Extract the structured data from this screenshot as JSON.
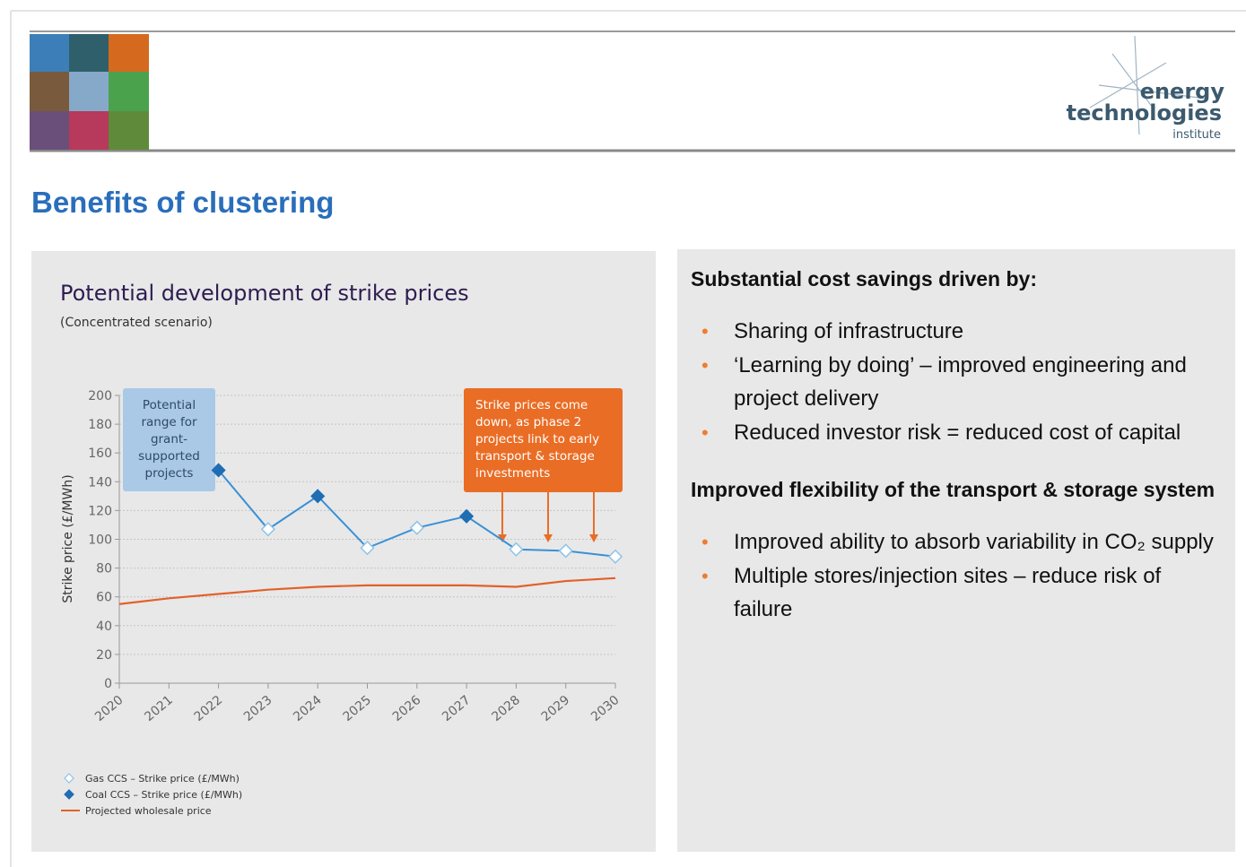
{
  "logo": {
    "line1": "energy",
    "line2": "technologies",
    "line3": "institute"
  },
  "slide_title": "Benefits of clustering",
  "chart_data": {
    "type": "line",
    "title": "Potential development of strike prices",
    "subtitle": "(Concentrated scenario)",
    "y_label": "Strike price (£/MWh)",
    "x": [
      2020,
      2021,
      2022,
      2023,
      2024,
      2025,
      2026,
      2027,
      2028,
      2029,
      2030
    ],
    "xlim": [
      2020,
      2030
    ],
    "xticks": [
      2020,
      2021,
      2022,
      2023,
      2024,
      2025,
      2026,
      2027,
      2028,
      2029,
      2030
    ],
    "ylim": [
      0,
      200
    ],
    "yticks": [
      0,
      20,
      40,
      60,
      80,
      100,
      120,
      140,
      160,
      180,
      200
    ],
    "grid": true,
    "series": [
      {
        "name": "Gas CCS – Strike price (£/MWh)",
        "color": "#8ec3e6",
        "marker": "hollow-diamond",
        "values": [
          null,
          null,
          null,
          107,
          null,
          94,
          108,
          null,
          93,
          92,
          88
        ]
      },
      {
        "name": "Coal CCS – Strike price (£/MWh)",
        "color": "#1f6db3",
        "marker": "diamond",
        "values": [
          null,
          null,
          148,
          null,
          130,
          null,
          null,
          116,
          null,
          null,
          null
        ]
      },
      {
        "name": "Projected wholesale price",
        "color": "#e2612a",
        "marker": "line",
        "values": [
          55,
          59,
          62,
          65,
          67,
          68,
          68,
          68,
          67,
          71,
          73
        ]
      }
    ],
    "annotations": [
      {
        "lines": [
          "Potential",
          "range for",
          "grant-",
          "supported",
          "projects"
        ]
      },
      {
        "lines": [
          "Strike prices come",
          "down, as phase 2",
          "projects link to early",
          "transport & storage",
          "investments"
        ]
      }
    ]
  },
  "panel": {
    "sections": [
      {
        "heading": "Substantial cost savings driven by:",
        "bullets": [
          "Sharing of infrastructure",
          "‘Learning by doing’ – improved engineering and project delivery",
          "Reduced investor risk = reduced cost of capital"
        ]
      },
      {
        "heading": "Improved flexibility of the transport & storage system",
        "bullets": [
          "Improved ability to absorb variability in CO₂ supply",
          "Multiple stores/injection sites – reduce risk of failure"
        ]
      }
    ]
  }
}
